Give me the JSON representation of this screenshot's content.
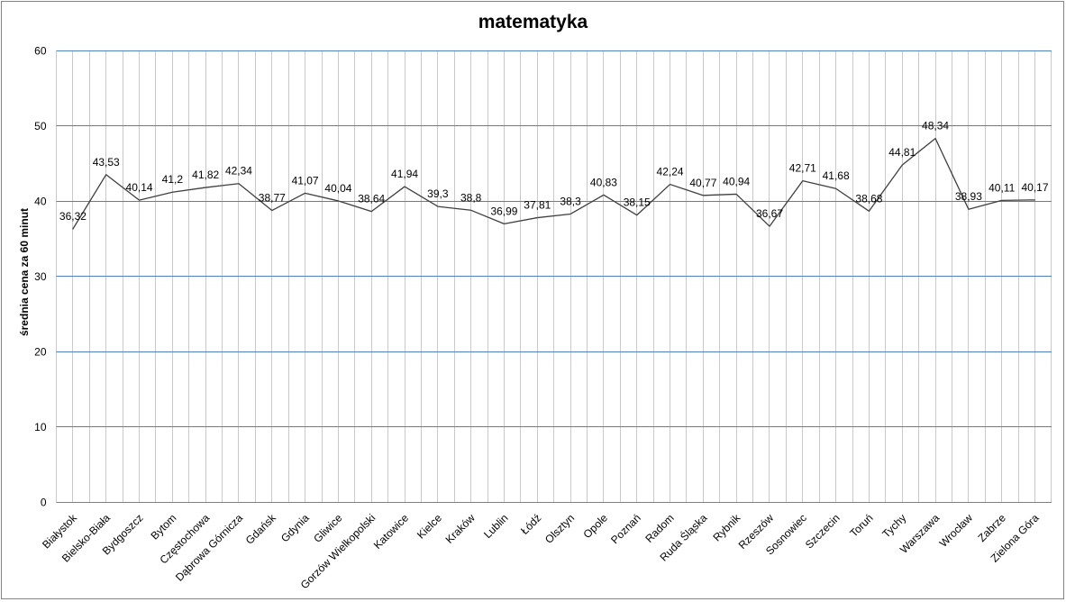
{
  "chart_data": {
    "type": "line",
    "title": "matematyka",
    "ylabel": "średnia cena za 60 minut",
    "xlabel": "",
    "ylim": [
      0,
      60
    ],
    "yticks": [
      0,
      10,
      20,
      30,
      40,
      50,
      60
    ],
    "grid": {
      "horizontal": true,
      "vertical": true
    },
    "legend": {
      "visible": false
    },
    "categories": [
      "Białystok",
      "Bielsko-Biała",
      "Bydgoszcz",
      "Bytom",
      "Częstochowa",
      "Dąbrowa Górnicza",
      "Gdańsk",
      "Gdynia",
      "Gliwice",
      "Gorzów Wielkopolski",
      "Katowice",
      "Kielce",
      "Kraków",
      "Lublin",
      "Łódź",
      "Olsztyn",
      "Opole",
      "Poznań",
      "Radom",
      "Ruda Śląska",
      "Rybnik",
      "Rzeszów",
      "Sosnowiec",
      "Szczecin",
      "Toruń",
      "Tychy",
      "Warszawa",
      "Wrocław",
      "Zabrze",
      "Zielona Góra"
    ],
    "series": [
      {
        "name": "matematyka",
        "values": [
          36.32,
          43.53,
          40.14,
          41.2,
          41.82,
          42.34,
          38.77,
          41.07,
          40.04,
          38.64,
          41.94,
          39.3,
          38.8,
          36.99,
          37.81,
          38.3,
          40.83,
          38.15,
          42.24,
          40.77,
          40.94,
          36.67,
          42.71,
          41.68,
          38.68,
          44.81,
          48.34,
          38.93,
          40.11,
          40.17
        ],
        "labels": [
          "36,32",
          "43,53",
          "40,14",
          "41,2",
          "41,82",
          "42,34",
          "38,77",
          "41,07",
          "40,04",
          "38,64",
          "41,94",
          "39,3",
          "38,8",
          "36,99",
          "37,81",
          "38,3",
          "40,83",
          "38,15",
          "42,24",
          "40,77",
          "40,94",
          "36,67",
          "42,71",
          "41,68",
          "38,68",
          "44,81",
          "48,34",
          "38,93",
          "40,11",
          "40,17"
        ]
      }
    ],
    "colors": {
      "series_line": "#3f3f3f",
      "h_gridline": "#4f81bd",
      "v_gridline": "#c9c9c9",
      "axis_line": "#7f7f7f",
      "chart_border": "#848484",
      "text": "#000000"
    }
  }
}
